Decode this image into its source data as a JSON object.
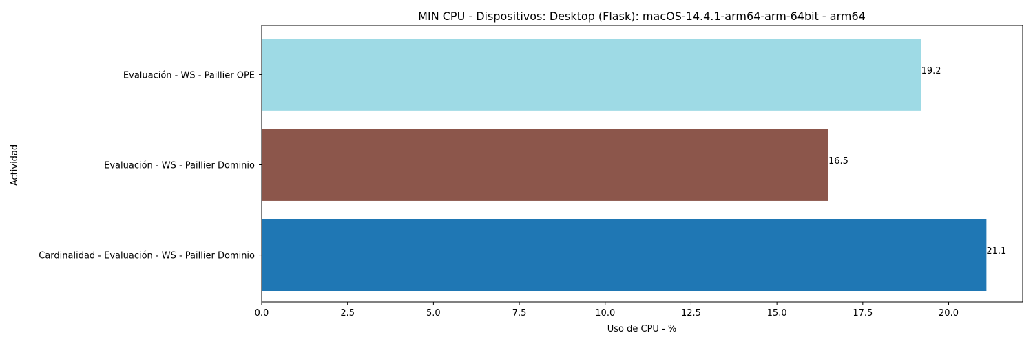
{
  "chart_data": {
    "type": "bar",
    "orientation": "horizontal",
    "title": "MIN CPU - Dispositivos: Desktop (Flask): macOS-14.4.1-arm64-arm-64bit - arm64",
    "xlabel": "Uso de CPU - %",
    "ylabel": "Actividad",
    "categories": [
      "Cardinalidad - Evaluación - WS - Paillier Dominio",
      "Evaluación - WS - Paillier Dominio",
      "Evaluación - WS - Paillier OPE"
    ],
    "values": [
      21.1,
      16.5,
      19.2
    ],
    "data_labels": [
      "21.1",
      "16.5",
      "19.2"
    ],
    "colors": [
      "#1f77b4",
      "#8c564b",
      "#9edae5"
    ],
    "xlim": [
      0,
      22.155
    ],
    "xticks": [
      0,
      2.5,
      5,
      7.5,
      10,
      12.5,
      15,
      17.5,
      20
    ],
    "xtick_labels": [
      "0.0",
      "2.5",
      "5.0",
      "7.5",
      "10.0",
      "12.5",
      "15.0",
      "17.5",
      "20.0"
    ],
    "grid": false,
    "legend": "none"
  }
}
